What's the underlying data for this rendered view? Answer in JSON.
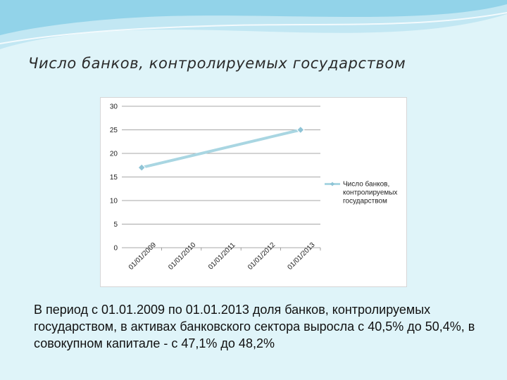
{
  "slide": {
    "title": "Число банков, контролируемых государством",
    "caption": "В период с 01.01.2009 по 01.01.2013 доля банков, контролируемых государством, в активах банковского сектора выросла с 40,5% до 50,4%, в совокупном капитале - с 47,1% до 48,2%"
  },
  "colors": {
    "background": "#dff4f9",
    "wave_light": "#bfe6f2",
    "wave_dark": "#6cc3e0",
    "series_line": "#a9d6e2",
    "marker": "#8fc4d6"
  },
  "chart_data": {
    "type": "line",
    "title": "",
    "xlabel": "",
    "ylabel": "",
    "categories": [
      "01/01/2009",
      "01/01/2010",
      "01/01/2011",
      "01/01/2012",
      "01/01/2013"
    ],
    "series": [
      {
        "name": "Число банков, контролируемых государством",
        "legend_lines": [
          "Число банков,",
          "контролируемых",
          "государством"
        ],
        "points": [
          {
            "x": "01/01/2009",
            "y": 17
          },
          {
            "x": "01/01/2013",
            "y": 25
          }
        ]
      }
    ],
    "yticks": [
      "0",
      "5",
      "10",
      "15",
      "20",
      "25",
      "30"
    ],
    "ylim": [
      0,
      30
    ],
    "grid": true,
    "legend_position": "right"
  }
}
